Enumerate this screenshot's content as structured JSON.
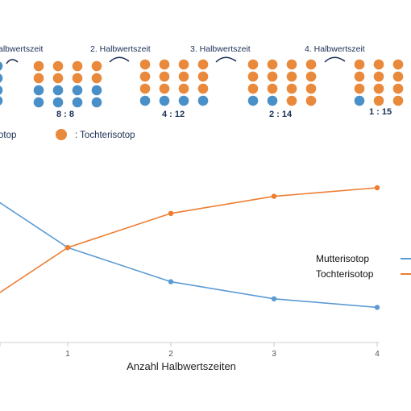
{
  "colors": {
    "parent": "#5b9bd5",
    "daughter": "#ed7d31",
    "parent_atom": "#4a90c8",
    "daughter_atom": "#e8893b",
    "text_dark": "#1b2f55"
  },
  "diagram": {
    "halflife_labels": [
      "albwertszeit",
      "2. Halbwertszeit",
      "3. Halbwertszeit",
      "4. Halbwertszeit"
    ],
    "groups": [
      {
        "ratio": "8 : 8",
        "parent": 8,
        "daughter": 8
      },
      {
        "ratio": "4 : 12",
        "parent": 4,
        "daughter": 12
      },
      {
        "ratio": "2 : 14",
        "parent": 2,
        "daughter": 14
      },
      {
        "ratio": "1 : 15",
        "parent": 1,
        "daughter": 15
      }
    ],
    "legend_parent_text": "otop",
    "legend_daughter_text": ": Tochterisotop"
  },
  "chart_data": {
    "type": "line",
    "xlabel": "Anzahl Halbwertszeiten",
    "ylabel": "",
    "x": [
      0,
      1,
      2,
      3,
      4
    ],
    "x_ticks": [
      "1",
      "2",
      "3",
      "4"
    ],
    "series": [
      {
        "name": "Mutterisotop",
        "values": [
          16,
          8,
          4,
          2,
          1
        ]
      },
      {
        "name": "Tochterisotop",
        "values": [
          0,
          8,
          12,
          14,
          15
        ]
      }
    ],
    "ylim": [
      0,
      16
    ],
    "grid": false,
    "legend_position": "right"
  }
}
